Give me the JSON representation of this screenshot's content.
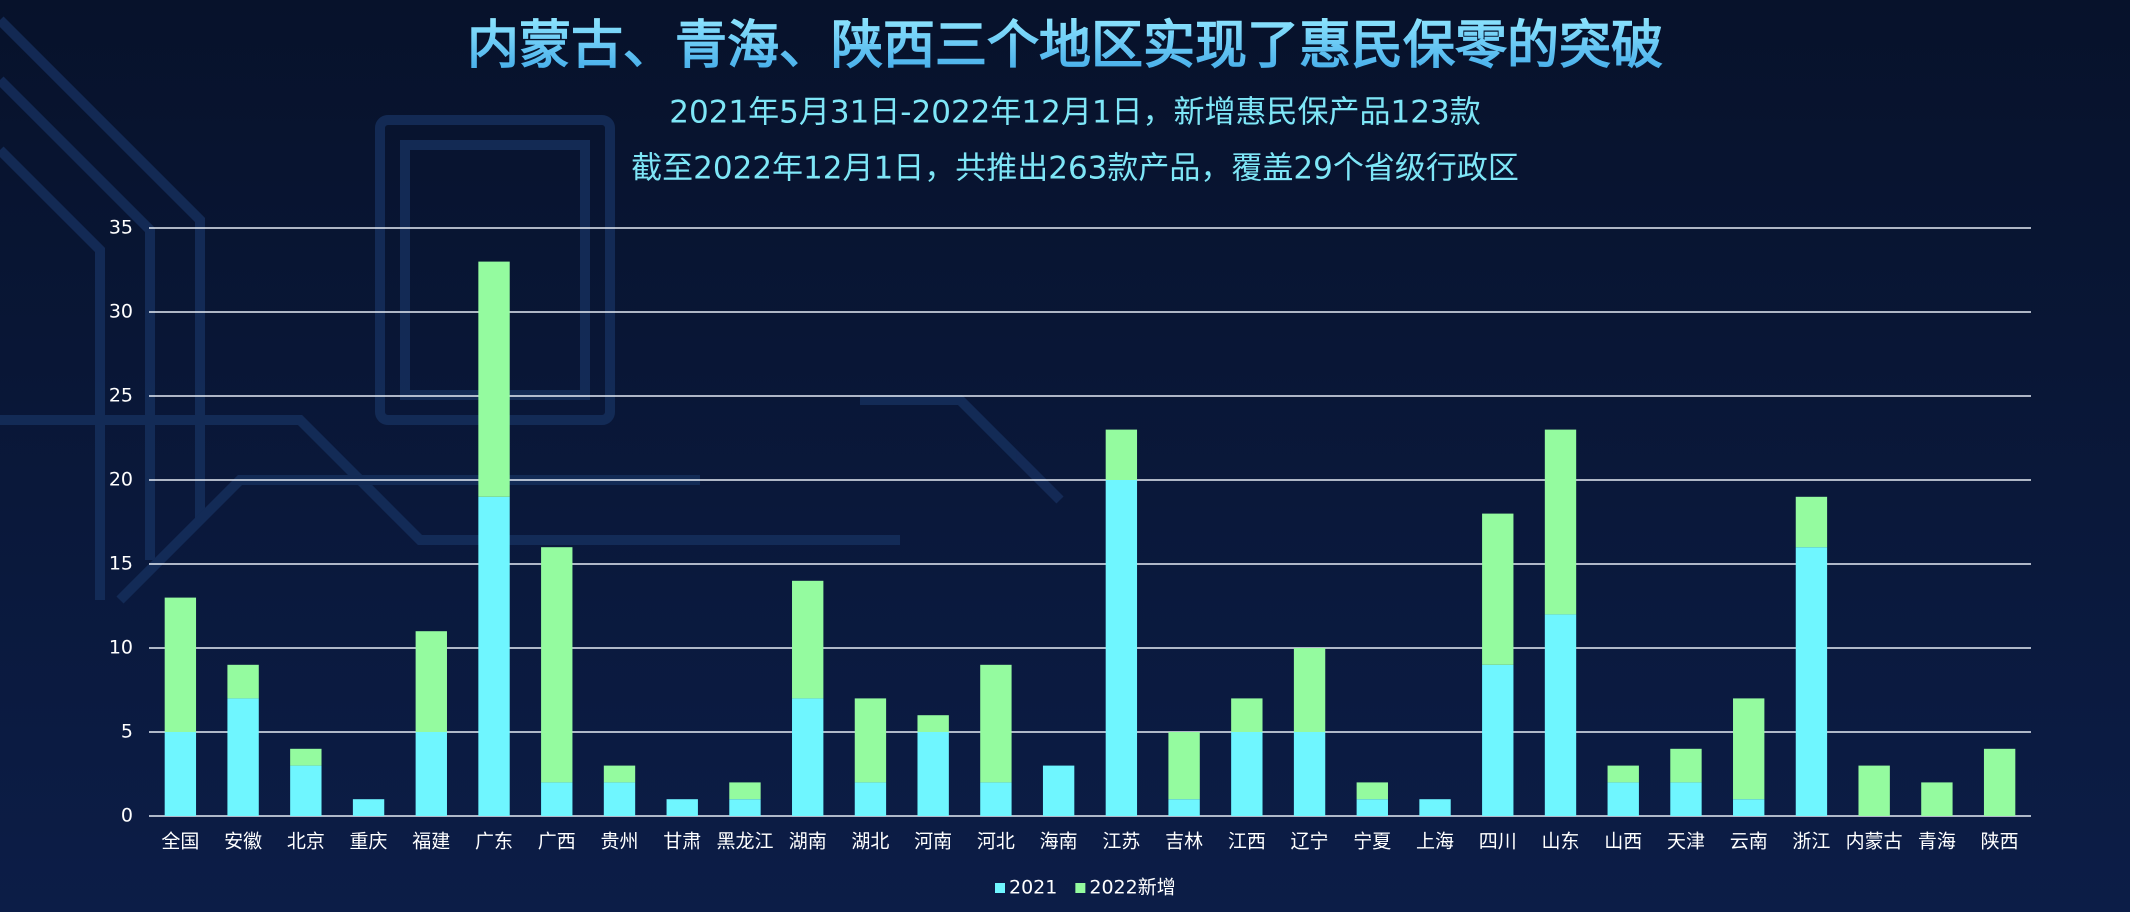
{
  "chart_data": {
    "type": "stacked-bar",
    "title": "内蒙古、青海、陕西三个地区实现了惠民保零的突破",
    "subtitle": "2021年5月31日-2022年12月1日，新增惠民保产品123款",
    "subtitle2": "截至2022年12月1日，共推出263款产品，覆盖29个省级行政区",
    "categories": [
      "全国",
      "安徽",
      "北京",
      "重庆",
      "福建",
      "广东",
      "广西",
      "贵州",
      "甘肃",
      "黑龙江",
      "湖南",
      "湖北",
      "河南",
      "河北",
      "海南",
      "江苏",
      "吉林",
      "江西",
      "辽宁",
      "宁夏",
      "上海",
      "四川",
      "山东",
      "山西",
      "天津",
      "云南",
      "浙江",
      "内蒙古",
      "青海",
      "陕西"
    ],
    "series": [
      {
        "name": "2021",
        "color": "#6ff6ff",
        "values": [
          5,
          7,
          3,
          1,
          5,
          19,
          2,
          2,
          1,
          1,
          7,
          2,
          5,
          2,
          3,
          20,
          1,
          5,
          5,
          1,
          1,
          9,
          12,
          2,
          2,
          1,
          16,
          0,
          0,
          0
        ]
      },
      {
        "name": "2022新增",
        "color": "#94fb9f",
        "values": [
          8,
          2,
          1,
          0,
          6,
          14,
          14,
          1,
          0,
          1,
          7,
          5,
          1,
          7,
          0,
          3,
          4,
          2,
          5,
          1,
          0,
          9,
          11,
          1,
          2,
          6,
          3,
          3,
          2,
          4
        ]
      }
    ],
    "ylim": [
      0,
      35
    ],
    "yticks": [
      0,
      5,
      10,
      15,
      20,
      25,
      30,
      35
    ],
    "grid": true,
    "legend": "bottom"
  }
}
